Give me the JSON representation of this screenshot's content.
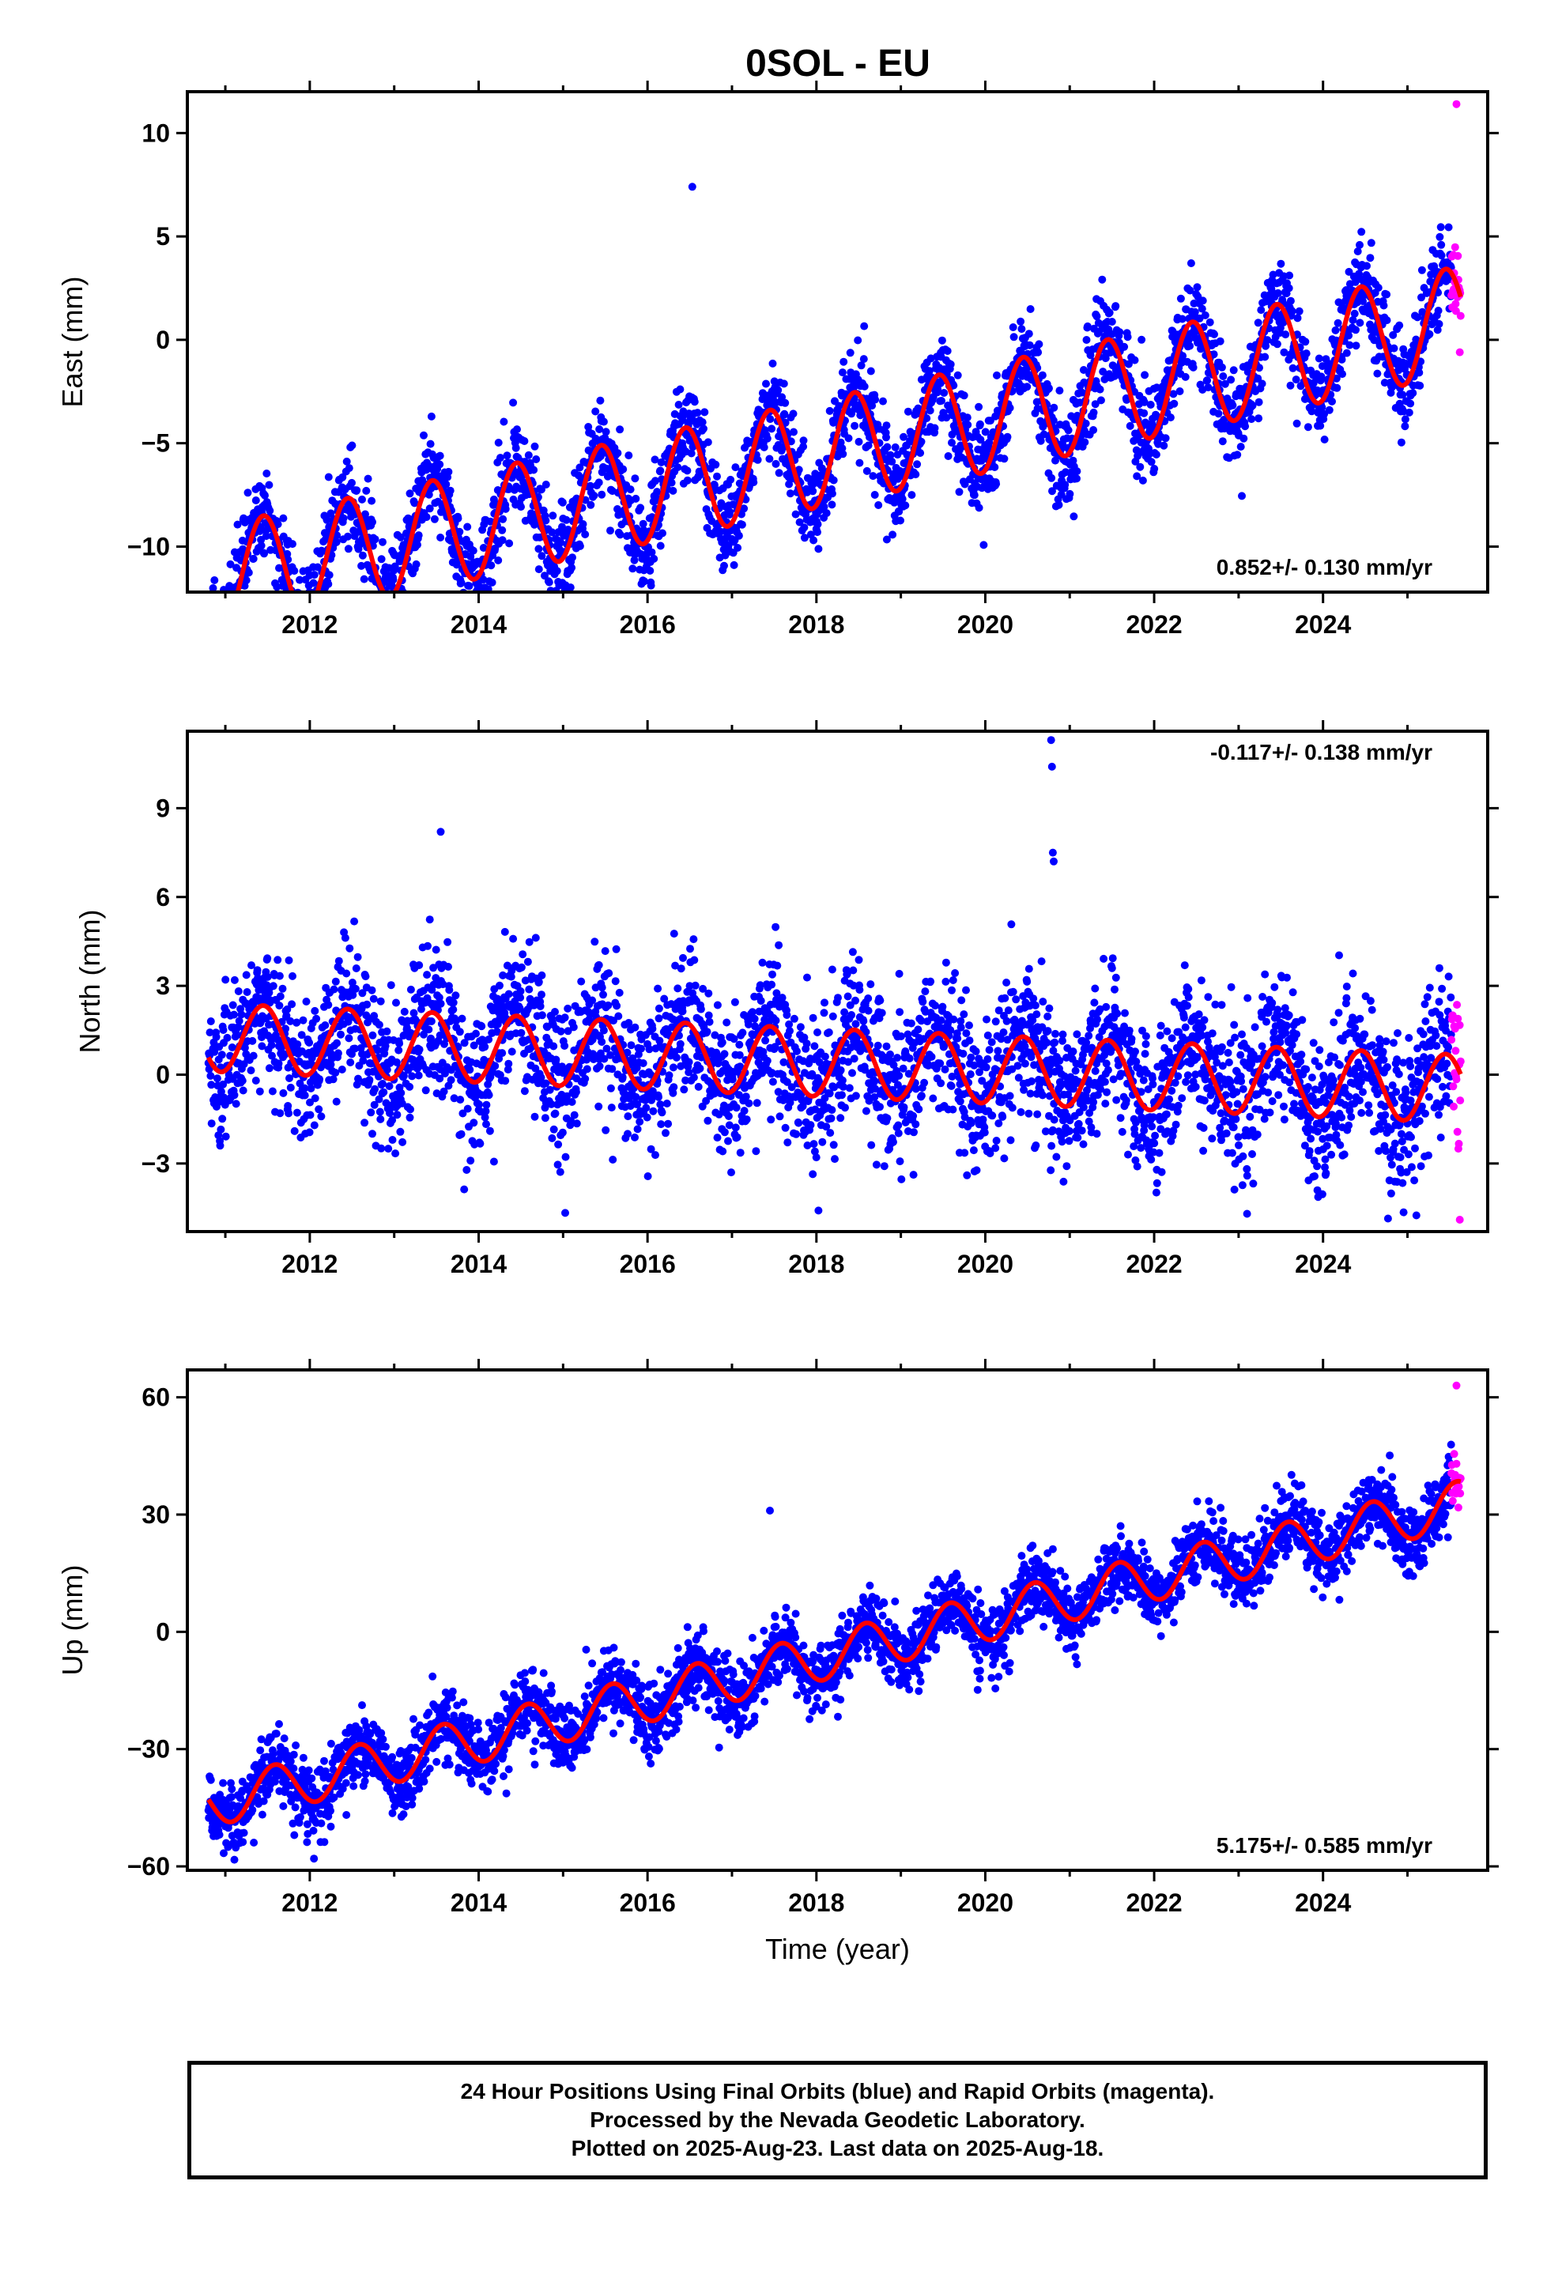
{
  "title": "0SOL - EU",
  "chart_data": [
    {
      "type": "scatter",
      "name": "east",
      "ylabel": "East (mm)",
      "xlabel": "",
      "xlim": [
        2010.55,
        2025.95
      ],
      "ylim": [
        -12.2,
        12.0
      ],
      "x_ticks": [
        2012,
        2014,
        2016,
        2018,
        2020,
        2022,
        2024
      ],
      "x_tick_labels": [
        "2012",
        "2014",
        "2016",
        "2018",
        "2020",
        "2022",
        "2024"
      ],
      "y_ticks": [
        -10,
        -5,
        0,
        5,
        10
      ],
      "y_tick_labels": [
        "−10",
        "−5",
        "0",
        "5",
        "10"
      ],
      "rate_text": "0.852+/- 0.130 mm/yr",
      "rate_position": "bottom-right",
      "model": {
        "offset": -5.4,
        "slope": 0.852,
        "t0": 2018.15,
        "amplitude": 2.6,
        "phase_peak": 0.45
      },
      "noise_sd": 1.15,
      "data_range": [
        2010.8,
        2025.63
      ],
      "rapid_range": [
        2025.52,
        2025.63
      ],
      "outliers": [
        [
          2025.58,
          11.4
        ],
        [
          2016.53,
          7.4
        ],
        [
          2011.95,
          -11.6
        ],
        [
          2025.62,
          -0.6
        ]
      ],
      "series": [
        {
          "name": "Final Orbits",
          "color": "#0000ff"
        },
        {
          "name": "Rapid Orbits",
          "color": "#ff00ff"
        },
        {
          "name": "Model",
          "color": "#ff0000"
        }
      ]
    },
    {
      "type": "scatter",
      "name": "north",
      "ylabel": "North (mm)",
      "xlabel": "",
      "xlim": [
        2010.55,
        2025.95
      ],
      "ylim": [
        -5.3,
        11.6
      ],
      "x_ticks": [
        2012,
        2014,
        2016,
        2018,
        2020,
        2022,
        2024
      ],
      "x_tick_labels": [
        "2012",
        "2014",
        "2016",
        "2018",
        "2020",
        "2022",
        "2024"
      ],
      "y_ticks": [
        -3,
        0,
        3,
        6,
        9
      ],
      "y_tick_labels": [
        "−3",
        "0",
        "3",
        "6",
        "9"
      ],
      "rate_text": "-0.117+/- 0.138 mm/yr",
      "rate_position": "top-right",
      "model": {
        "offset": 0.4,
        "slope": -0.117,
        "t0": 2018.15,
        "amplitude": 1.15,
        "phase_peak": 0.45
      },
      "noise_sd": 1.25,
      "data_range": [
        2010.8,
        2025.63
      ],
      "rapid_range": [
        2025.52,
        2025.63
      ],
      "outliers": [
        [
          2013.55,
          8.2
        ],
        [
          2020.78,
          11.3
        ],
        [
          2020.79,
          10.4
        ],
        [
          2020.8,
          7.5
        ],
        [
          2020.81,
          7.2
        ],
        [
          2023.1,
          -4.7
        ],
        [
          2025.62,
          -4.9
        ]
      ],
      "series": [
        {
          "name": "Final Orbits",
          "color": "#0000ff"
        },
        {
          "name": "Rapid Orbits",
          "color": "#ff00ff"
        },
        {
          "name": "Model",
          "color": "#ff0000"
        }
      ]
    },
    {
      "type": "scatter",
      "name": "up",
      "ylabel": "Up (mm)",
      "xlabel": "Time (year)",
      "xlim": [
        2010.55,
        2025.95
      ],
      "ylim": [
        -61,
        67
      ],
      "x_ticks": [
        2012,
        2014,
        2016,
        2018,
        2020,
        2022,
        2024
      ],
      "x_tick_labels": [
        "2012",
        "2014",
        "2016",
        "2018",
        "2020",
        "2022",
        "2024"
      ],
      "y_ticks": [
        -60,
        -30,
        0,
        30,
        60
      ],
      "y_tick_labels": [
        "−60",
        "−30",
        "0",
        "30",
        "60"
      ],
      "rate_text": "5.175+/- 0.585 mm/yr",
      "rate_position": "bottom-right",
      "model": {
        "offset": -6.0,
        "slope": 5.175,
        "t0": 2018.15,
        "amplitude": 6.0,
        "phase_peak": 0.58
      },
      "noise_sd": 4.5,
      "data_range": [
        2010.8,
        2025.63
      ],
      "rapid_range": [
        2025.52,
        2025.63
      ],
      "outliers": [
        [
          2017.45,
          31.0
        ],
        [
          2012.05,
          -58.0
        ],
        [
          2025.58,
          63.0
        ]
      ],
      "series": [
        {
          "name": "Final Orbits",
          "color": "#0000ff"
        },
        {
          "name": "Rapid Orbits",
          "color": "#ff00ff"
        },
        {
          "name": "Model",
          "color": "#ff0000"
        }
      ]
    }
  ],
  "footer": {
    "line1": "24 Hour Positions Using Final Orbits (blue) and Rapid Orbits (magenta).",
    "line2": "Processed by the Nevada Geodetic Laboratory.",
    "line3": "Plotted on 2025-Aug-23. Last data on 2025-Aug-18."
  }
}
